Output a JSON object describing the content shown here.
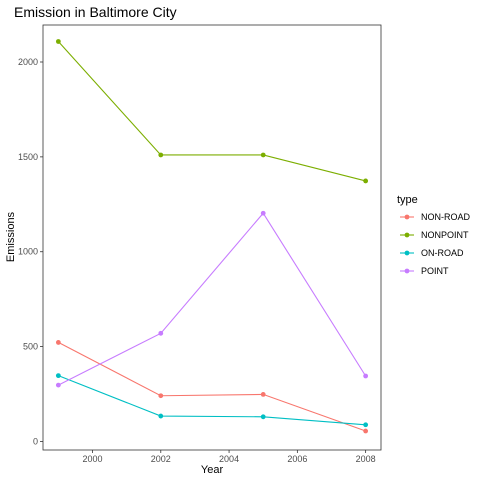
{
  "chart_data": {
    "type": "line",
    "title": "Emission in Baltimore City",
    "xlabel": "Year",
    "ylabel": "Emissions",
    "xlim": [
      1998.55,
      2008.45
    ],
    "ylim": [
      -45,
      2195
    ],
    "x_ticks": [
      2000,
      2002,
      2004,
      2006,
      2008
    ],
    "y_ticks": [
      0,
      500,
      1000,
      1500,
      2000
    ],
    "grid": false,
    "legend": {
      "title": "type",
      "position": "right"
    },
    "x": [
      1999,
      2002,
      2005,
      2008
    ],
    "series": [
      {
        "name": "NON-ROAD",
        "color": "#F8766D",
        "values": [
          522,
          241,
          248,
          55
        ]
      },
      {
        "name": "NONPOINT",
        "color": "#7CAE00",
        "values": [
          2108,
          1510,
          1510,
          1373
        ]
      },
      {
        "name": "ON-ROAD",
        "color": "#00BFC4",
        "values": [
          347,
          134,
          130,
          88
        ]
      },
      {
        "name": "POINT",
        "color": "#C77CFF",
        "values": [
          297,
          570,
          1203,
          345
        ]
      }
    ]
  }
}
